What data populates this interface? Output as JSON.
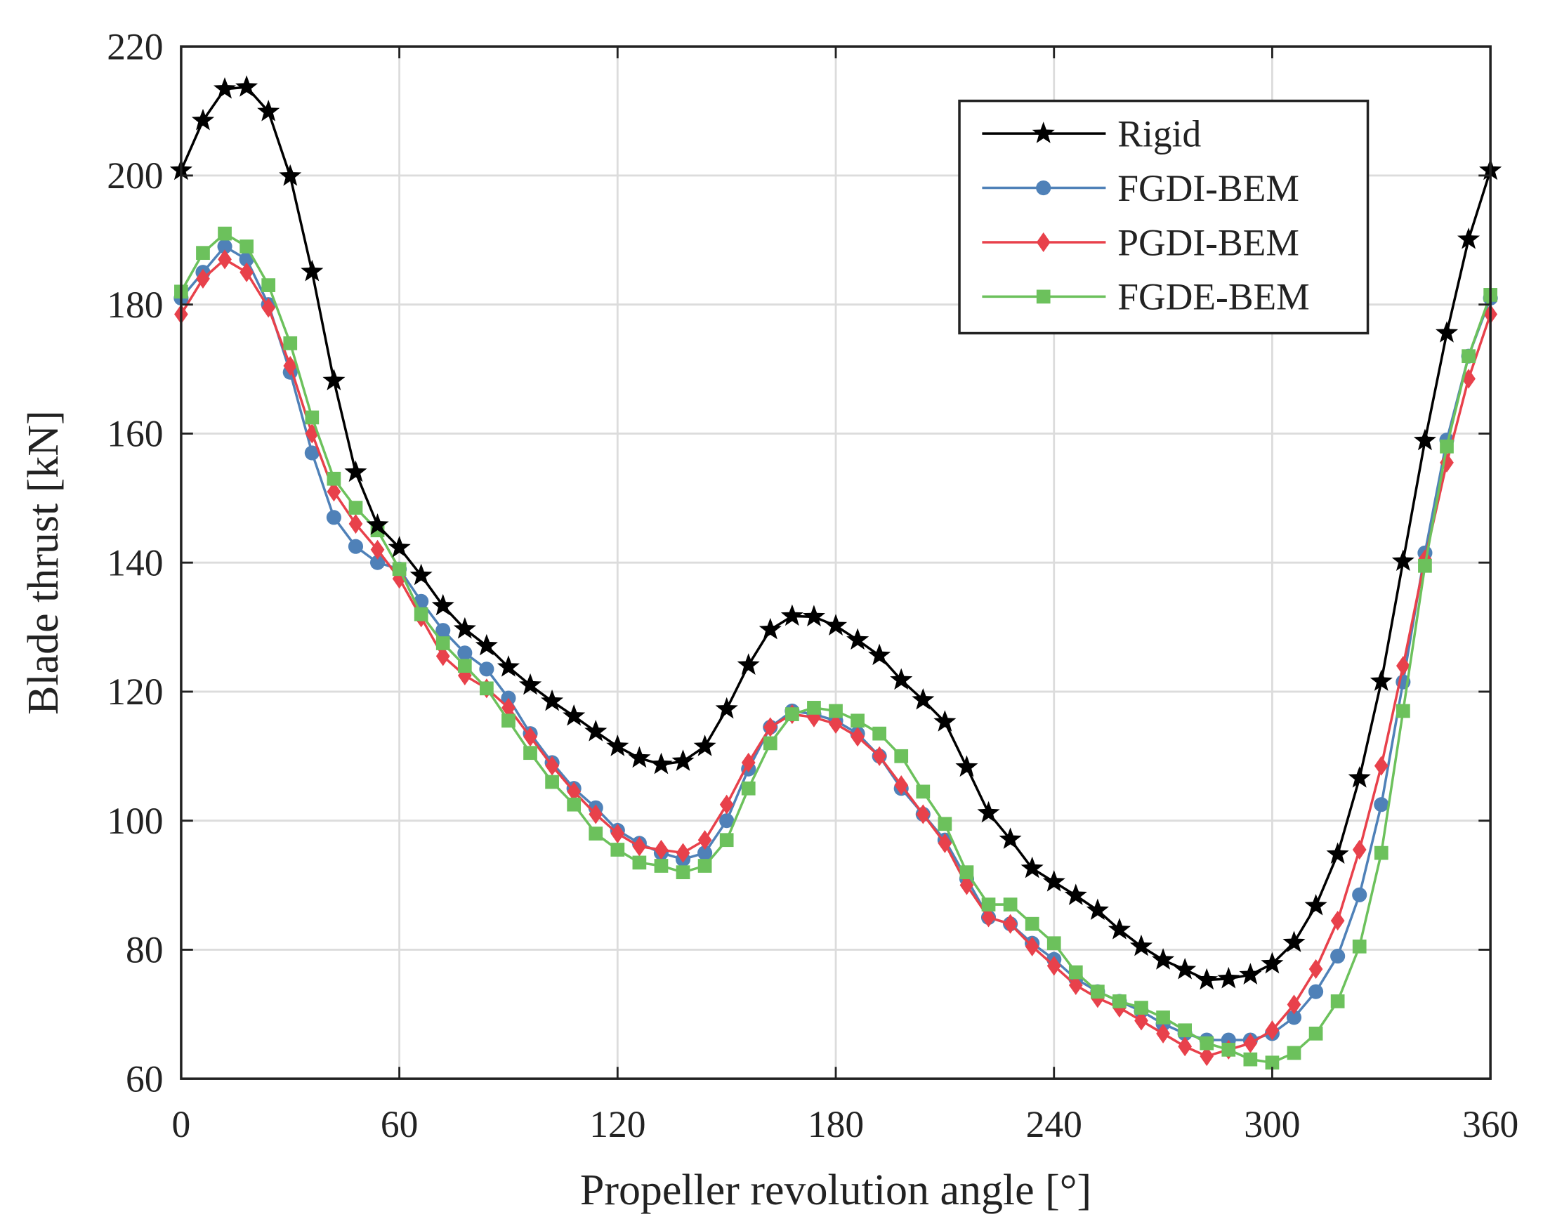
{
  "chart_data": {
    "type": "line",
    "title": "",
    "xlabel": "Propeller revolution angle [°]",
    "ylabel": "Blade thrust [kN]",
    "xlim": [
      0,
      360
    ],
    "ylim": [
      60,
      220
    ],
    "xticks": [
      "0",
      "60",
      "120",
      "180",
      "240",
      "300",
      "360"
    ],
    "yticks": [
      "60",
      "80",
      "100",
      "120",
      "140",
      "160",
      "180",
      "200",
      "220"
    ],
    "grid": true,
    "legend_position": "top-right",
    "x": [
      0,
      6,
      12,
      18,
      24,
      30,
      36,
      42,
      48,
      54,
      60,
      66,
      72,
      78,
      84,
      90,
      96,
      102,
      108,
      114,
      120,
      126,
      132,
      138,
      144,
      150,
      156,
      162,
      168,
      174,
      180,
      186,
      192,
      198,
      204,
      210,
      216,
      222,
      228,
      234,
      240,
      246,
      252,
      258,
      264,
      270,
      276,
      282,
      288,
      294,
      300,
      306,
      312,
      318,
      324,
      330,
      336,
      342,
      348,
      354,
      360
    ],
    "series": [
      {
        "name": "Rigid",
        "color": "#000000",
        "marker": "star",
        "values": [
          200.8,
          208.5,
          213.4,
          213.7,
          209.9,
          199.9,
          185.1,
          168.2,
          154,
          145.8,
          142.3,
          138,
          133.3,
          129.7,
          127.1,
          123.8,
          121,
          118.5,
          116.2,
          113.8,
          111.5,
          109.7,
          108.7,
          109.2,
          111.5,
          117.3,
          124.1,
          129.6,
          131.7,
          131.6,
          130.2,
          128,
          125.6,
          121.8,
          118.7,
          115.3,
          108.3,
          101.2,
          97.1,
          92.6,
          90.5,
          88.4,
          86.1,
          83.1,
          80.5,
          78.4,
          76.9,
          75.3,
          75.5,
          76.1,
          77.8,
          81.1,
          86.8,
          94.8,
          106.6,
          121.6,
          140.2,
          158.9,
          175.6,
          190.1,
          200.8
        ]
      },
      {
        "name": "FGDI-BEM",
        "color": "#4f81b8",
        "marker": "circle",
        "values": [
          181,
          185,
          189,
          187,
          180,
          169.5,
          157,
          147,
          142.5,
          140,
          139,
          134,
          129.5,
          126,
          123.5,
          119,
          113.5,
          109,
          105,
          102,
          98.5,
          96.5,
          95,
          94,
          95,
          100,
          108,
          114.5,
          117,
          116.5,
          115.5,
          113.5,
          110,
          105,
          101,
          97,
          91,
          85,
          84,
          81,
          78.5,
          75.5,
          73.5,
          72,
          70.5,
          68.5,
          67,
          66,
          66,
          66,
          67,
          69.5,
          73.5,
          79,
          88.5,
          102.5,
          121.5,
          141.5,
          159,
          172,
          181
        ]
      },
      {
        "name": "PGDI-BEM",
        "color": "#e8414b",
        "marker": "diamond",
        "values": [
          178.5,
          184,
          187,
          185,
          179.5,
          170.5,
          160,
          151,
          146,
          142,
          137.5,
          131.5,
          125.5,
          122.5,
          120.5,
          117.5,
          113,
          108.5,
          104.5,
          101,
          98,
          96,
          95.5,
          95,
          97,
          102.5,
          109,
          114.5,
          116.5,
          116,
          115,
          113,
          110,
          105.5,
          101,
          96.5,
          90,
          85,
          84,
          80.5,
          77.5,
          74.5,
          72.5,
          71,
          69,
          67,
          65,
          63.5,
          64.5,
          65.5,
          67.5,
          71.5,
          77,
          84.5,
          95.5,
          108.5,
          124,
          140.5,
          155.5,
          168.5,
          178.5
        ]
      },
      {
        "name": "FGDE-BEM",
        "color": "#6cc15c",
        "marker": "square",
        "values": [
          182,
          188,
          191,
          189,
          183,
          174,
          162.5,
          153,
          148.5,
          145,
          139,
          132,
          127.5,
          124,
          120.5,
          115.5,
          110.5,
          106,
          102.5,
          98,
          95.5,
          93.5,
          93,
          92,
          93,
          97,
          105,
          112,
          116.5,
          117.5,
          117,
          115.5,
          113.5,
          110,
          104.5,
          99.5,
          92,
          87,
          87,
          84,
          81,
          76.5,
          73.5,
          72,
          71,
          69.5,
          67.5,
          65.5,
          64.5,
          63,
          62.5,
          64,
          67,
          72,
          80.5,
          95,
          117,
          139.5,
          158,
          172,
          181.5
        ]
      }
    ]
  }
}
